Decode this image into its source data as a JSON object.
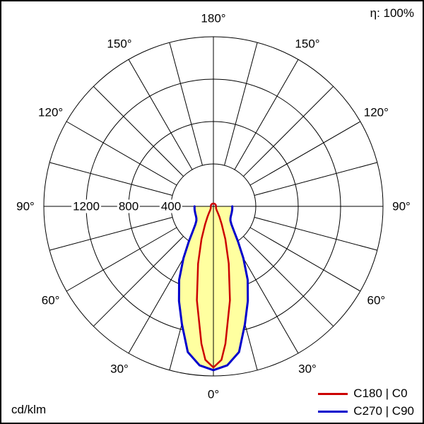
{
  "frame": {
    "background": "#ffffff",
    "border_color": "#000000"
  },
  "chart_data": {
    "type": "polar",
    "subtype": "luminous-intensity-distribution",
    "unit": "cd/klm",
    "efficiency": "η: 100%",
    "grid_color": "#000000",
    "radial_max": 1600,
    "circle_values": [
      400,
      800,
      1200,
      1600
    ],
    "radial_ticks": [
      {
        "value": 1200,
        "label": "1200"
      },
      {
        "value": 800,
        "label": "800"
      },
      {
        "value": 400,
        "label": "400"
      }
    ],
    "angle_ticks": [
      {
        "angle": 0,
        "label": "0°"
      },
      {
        "angle": 30,
        "label": "30°"
      },
      {
        "angle": 60,
        "label": "60°"
      },
      {
        "angle": 90,
        "label": "90°"
      },
      {
        "angle": 120,
        "label": "120°"
      },
      {
        "angle": 150,
        "label": "150°"
      },
      {
        "angle": 180,
        "label": "180°"
      }
    ],
    "spoke_step_deg": 15,
    "series": [
      {
        "name": "C180 | C0",
        "color": "#cc0000",
        "closed": true,
        "angles_deg": [
          0,
          3,
          5,
          10,
          15,
          20,
          25,
          30,
          35,
          40,
          50,
          60,
          75,
          90,
          120,
          150,
          180
        ],
        "values": [
          1520,
          1450,
          1300,
          900,
          560,
          330,
          185,
          110,
          70,
          48,
          34,
          28,
          26,
          25,
          26,
          27,
          27
        ]
      },
      {
        "name": "C270 | C90",
        "color": "#0000cc",
        "fill": "#ffffa0",
        "closed": false,
        "angles_deg": [
          0,
          5,
          10,
          15,
          20,
          25,
          30,
          35,
          40,
          45,
          50,
          55,
          60,
          65,
          70,
          75,
          80,
          85,
          90
        ],
        "values": [
          1545,
          1505,
          1395,
          1150,
          950,
          765,
          565,
          405,
          300,
          240,
          210,
          196,
          189,
          185,
          183,
          181,
          180,
          179,
          178
        ]
      }
    ],
    "legend": [
      {
        "label": "C180 | C0",
        "color": "#cc0000"
      },
      {
        "label": "C270 | C90",
        "color": "#0000cc"
      }
    ]
  }
}
